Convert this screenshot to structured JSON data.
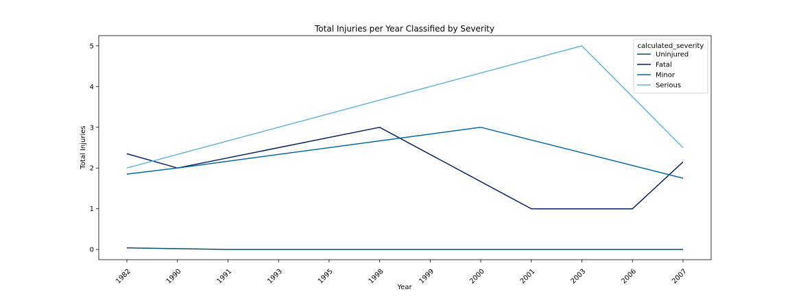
{
  "chart_data": {
    "type": "line",
    "title": "Total Injuries per Year Classified by Severity",
    "xlabel": "Year",
    "ylabel": "Total Injuries",
    "categories": [
      "1982",
      "1990",
      "1991",
      "1993",
      "1995",
      "1998",
      "1999",
      "2000",
      "2001",
      "2003",
      "2006",
      "2007"
    ],
    "ylim": [
      -0.25,
      5.25
    ],
    "yticks": [
      0,
      1,
      2,
      3,
      4,
      5
    ],
    "grid": false,
    "legend_title": "calculated_severity",
    "legend_position": "top-right",
    "series": [
      {
        "name": "Uninjured",
        "color": "#0b4f6c",
        "points": [
          [
            "1982",
            0.04
          ],
          [
            "1990",
            0.02
          ],
          [
            "1991",
            0.0
          ],
          [
            "1993",
            0.0
          ],
          [
            "1995",
            0.0
          ],
          [
            "1998",
            0.0
          ],
          [
            "1999",
            0.0
          ],
          [
            "2000",
            0.0
          ],
          [
            "2001",
            0.0
          ],
          [
            "2003",
            0.0
          ],
          [
            "2006",
            0.0
          ],
          [
            "2007",
            0.0
          ]
        ]
      },
      {
        "name": "Fatal",
        "color": "#08205c",
        "points": [
          [
            "1982",
            2.35
          ],
          [
            "1990",
            2.0
          ],
          [
            "1998",
            3.0
          ],
          [
            "2001",
            1.0
          ],
          [
            "2003",
            1.0
          ],
          [
            "2006",
            1.0
          ],
          [
            "2007",
            2.15
          ]
        ]
      },
      {
        "name": "Minor",
        "color": "#0567a0",
        "points": [
          [
            "1982",
            1.85
          ],
          [
            "1990",
            2.0
          ],
          [
            "2000",
            3.0
          ],
          [
            "2007",
            1.75
          ]
        ]
      },
      {
        "name": "Serious",
        "color": "#63b3d0",
        "points": [
          [
            "1982",
            2.0
          ],
          [
            "2003",
            5.0
          ],
          [
            "2007",
            2.5
          ]
        ]
      }
    ]
  }
}
